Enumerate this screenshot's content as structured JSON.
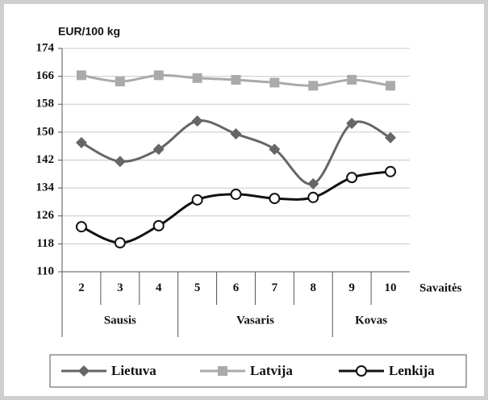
{
  "chart_data": {
    "type": "line",
    "ylabel": "EUR/100 kg",
    "xlabel": "Savaitės",
    "groups": [
      {
        "label": "Sausis",
        "categories": [
          "2",
          "3",
          "4"
        ]
      },
      {
        "label": "Vasaris",
        "categories": [
          "5",
          "6",
          "7",
          "8"
        ]
      },
      {
        "label": "Kovas",
        "categories": [
          "9",
          "10"
        ]
      }
    ],
    "series": [
      {
        "name": "Lietuva",
        "color": "#666666",
        "marker": "diamond",
        "values": [
          147,
          141.6,
          145.1,
          153.2,
          149.5,
          145.1,
          135.2,
          152.5,
          148.4
        ]
      },
      {
        "name": "Latvija",
        "color": "#aaaaaa",
        "marker": "square",
        "values": [
          166.3,
          164.5,
          166.3,
          165.5,
          165,
          164.2,
          163.3,
          165,
          163.3
        ]
      },
      {
        "name": "Lenkija",
        "color": "#111111",
        "marker": "circle",
        "values": [
          122.9,
          118.3,
          123.2,
          130.6,
          132.2,
          131,
          131.3,
          137,
          138.7
        ]
      }
    ],
    "ylim": [
      110,
      174
    ],
    "yticks": [
      110,
      118,
      126,
      134,
      142,
      150,
      158,
      166,
      174
    ],
    "grid": true,
    "smooth": true,
    "legend": "bottom"
  }
}
